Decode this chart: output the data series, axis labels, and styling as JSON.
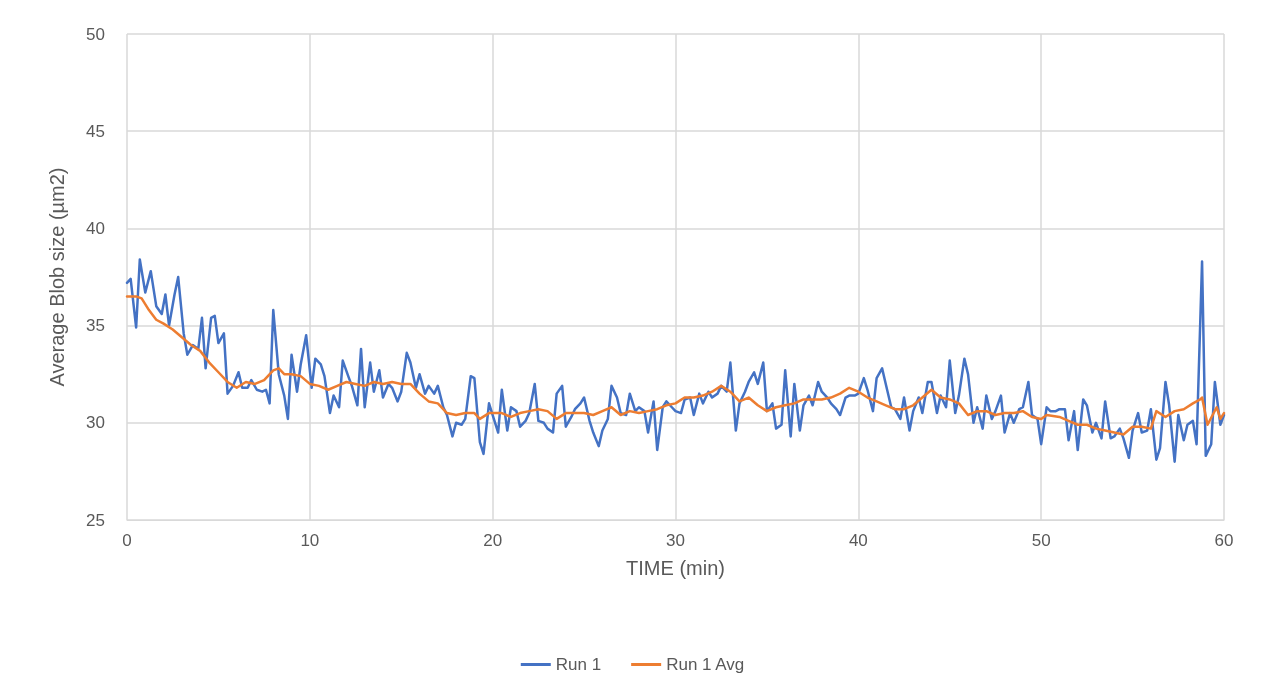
{
  "chart_data": {
    "type": "line",
    "xlabel": "TIME (min)",
    "ylabel": "Average Blob size (µm2)",
    "xlim": [
      0,
      60
    ],
    "xticks": [
      0,
      10,
      20,
      30,
      40,
      50,
      60
    ],
    "ylim": [
      25,
      50
    ],
    "yticks": [
      25,
      30,
      35,
      40,
      45,
      50
    ],
    "grid": true,
    "legend": "bottom",
    "marker": "none",
    "line_style": "solid",
    "series": [
      {
        "name": "Run 1",
        "color": "#4472c4",
        "x": [
          0,
          0.2,
          0.5,
          0.7,
          1.0,
          1.3,
          1.6,
          1.9,
          2.1,
          2.3,
          2.6,
          2.8,
          3.1,
          3.3,
          3.6,
          3.9,
          4.1,
          4.3,
          4.6,
          4.8,
          5.0,
          5.3,
          5.5,
          5.8,
          6.1,
          6.3,
          6.6,
          6.8,
          7.1,
          7.4,
          7.6,
          7.8,
          8.0,
          8.3,
          8.6,
          8.8,
          9.0,
          9.3,
          9.5,
          9.8,
          10.1,
          10.3,
          10.6,
          10.8,
          11.1,
          11.3,
          11.6,
          11.8,
          12.1,
          12.3,
          12.6,
          12.8,
          13.0,
          13.3,
          13.5,
          13.8,
          14.0,
          14.3,
          14.5,
          14.8,
          15.0,
          15.3,
          15.5,
          15.8,
          16.0,
          16.3,
          16.5,
          16.8,
          17.0,
          17.3,
          17.5,
          17.8,
          18.0,
          18.3,
          18.5,
          18.8,
          19.0,
          19.3,
          19.5,
          19.8,
          20.0,
          20.3,
          20.5,
          20.8,
          21.0,
          21.3,
          21.5,
          21.8,
          22.0,
          22.3,
          22.5,
          22.8,
          23.0,
          23.3,
          23.5,
          23.8,
          24.0,
          24.3,
          24.5,
          24.8,
          25.0,
          25.3,
          25.5,
          25.8,
          26.0,
          26.3,
          26.5,
          26.8,
          27.0,
          27.3,
          27.5,
          27.8,
          28.0,
          28.3,
          28.5,
          28.8,
          29.0,
          29.3,
          29.5,
          29.8,
          30.0,
          30.3,
          30.5,
          30.8,
          31.0,
          31.3,
          31.5,
          31.8,
          32.0,
          32.3,
          32.5,
          32.8,
          33.0,
          33.3,
          33.5,
          33.8,
          34.0,
          34.3,
          34.5,
          34.8,
          35.0,
          35.3,
          35.5,
          35.8,
          36.0,
          36.3,
          36.5,
          36.8,
          37.0,
          37.3,
          37.5,
          37.8,
          38.0,
          38.3,
          38.5,
          38.8,
          39.0,
          39.3,
          39.5,
          39.8,
          40.0,
          40.3,
          40.5,
          40.8,
          41.0,
          41.3,
          41.5,
          41.8,
          42.0,
          42.3,
          42.5,
          42.8,
          43.0,
          43.3,
          43.5,
          43.8,
          44.0,
          44.3,
          44.5,
          44.8,
          45.0,
          45.3,
          45.5,
          45.8,
          46.0,
          46.3,
          46.5,
          46.8,
          47.0,
          47.3,
          47.5,
          47.8,
          48.0,
          48.3,
          48.5,
          48.8,
          49.0,
          49.3,
          49.5,
          49.8,
          50.0,
          50.3,
          50.5,
          50.8,
          51.0,
          51.3,
          51.5,
          51.8,
          52.0,
          52.3,
          52.5,
          52.8,
          53.0,
          53.3,
          53.5,
          53.8,
          54.0,
          54.3,
          54.5,
          54.8,
          55.0,
          55.3,
          55.5,
          55.8,
          56.0,
          56.3,
          56.5,
          56.8,
          57.0,
          57.3,
          57.5,
          57.8,
          58.0,
          58.3,
          58.5,
          58.8,
          59.0,
          59.3,
          59.5,
          59.8,
          60.0
        ],
        "values": [
          37.2,
          37.4,
          34.9,
          38.4,
          36.7,
          37.8,
          36.0,
          35.6,
          36.6,
          35.0,
          36.6,
          37.5,
          34.6,
          33.5,
          34.0,
          33.8,
          35.4,
          32.8,
          35.4,
          35.5,
          34.1,
          34.6,
          31.5,
          31.9,
          32.6,
          31.8,
          31.8,
          32.2,
          31.7,
          31.6,
          31.7,
          31.0,
          35.8,
          32.5,
          31.4,
          30.2,
          33.5,
          31.6,
          33.0,
          34.5,
          31.8,
          33.3,
          33.0,
          32.4,
          30.5,
          31.4,
          30.8,
          33.2,
          32.4,
          31.9,
          30.9,
          33.8,
          30.8,
          33.1,
          31.6,
          32.7,
          31.3,
          32.0,
          31.8,
          31.1,
          31.6,
          33.6,
          33.1,
          31.8,
          32.5,
          31.5,
          31.9,
          31.5,
          31.9,
          30.8,
          30.4,
          29.3,
          30.0,
          29.9,
          30.2,
          32.4,
          32.3,
          29.0,
          28.4,
          31.0,
          30.4,
          29.5,
          31.7,
          29.6,
          30.8,
          30.6,
          29.8,
          30.1,
          30.5,
          32.0,
          30.1,
          30.0,
          29.7,
          29.5,
          31.5,
          31.9,
          29.8,
          30.3,
          30.7,
          31.0,
          31.3,
          30.1,
          29.5,
          28.8,
          29.6,
          30.2,
          31.9,
          31.3,
          30.5,
          30.4,
          31.5,
          30.6,
          30.8,
          30.6,
          29.5,
          31.1,
          28.6,
          30.8,
          31.1,
          30.8,
          30.6,
          30.5,
          31.2,
          31.3,
          30.4,
          31.5,
          31.0,
          31.6,
          31.3,
          31.5,
          31.9,
          31.6,
          33.1,
          29.6,
          31.0,
          31.6,
          32.1,
          32.6,
          32.0,
          33.1,
          30.6,
          31.0,
          29.7,
          29.9,
          32.7,
          29.3,
          32.0,
          29.6,
          30.9,
          31.4,
          30.9,
          32.1,
          31.6,
          31.3,
          31.0,
          30.7,
          30.4,
          31.3,
          31.4,
          31.4,
          31.5,
          32.3,
          31.7,
          30.6,
          32.3,
          32.8,
          32.0,
          30.8,
          30.7,
          30.2,
          31.3,
          29.6,
          30.6,
          31.3,
          30.5,
          32.1,
          32.1,
          30.5,
          31.4,
          30.8,
          33.2,
          30.5,
          31.4,
          33.3,
          32.5,
          30.0,
          30.8,
          29.7,
          31.4,
          30.2,
          30.6,
          31.4,
          29.5,
          30.5,
          30.0,
          30.7,
          30.8,
          32.1,
          30.4,
          30.2,
          28.9,
          30.8,
          30.6,
          30.6,
          30.7,
          30.7,
          29.1,
          30.6,
          28.6,
          31.2,
          30.9,
          29.5,
          30.0,
          29.2,
          31.1,
          29.2,
          29.3,
          29.7,
          29.2,
          28.2,
          29.6,
          30.5,
          29.5,
          29.6,
          30.7,
          28.1,
          28.7,
          32.1,
          30.9,
          28.0,
          30.4,
          29.1,
          29.9,
          30.1,
          28.9,
          38.3,
          28.3,
          28.9,
          32.1,
          29.9,
          30.4
        ]
      },
      {
        "name": "Run 1 Avg",
        "color": "#ed7d31",
        "x": [
          0,
          0.5,
          0.8,
          1.2,
          1.6,
          2.0,
          2.5,
          3.0,
          3.5,
          4.0,
          4.5,
          5.0,
          5.5,
          6.0,
          6.5,
          7.0,
          7.5,
          8.0,
          8.3,
          8.6,
          9.0,
          9.5,
          10.0,
          10.5,
          11.0,
          11.5,
          12.0,
          12.5,
          13.0,
          13.5,
          14.0,
          14.5,
          15.0,
          15.5,
          16.0,
          16.5,
          17.0,
          17.5,
          18.0,
          18.5,
          19.0,
          19.3,
          19.8,
          20.5,
          21.0,
          21.5,
          22.0,
          22.5,
          23.0,
          23.5,
          24.0,
          25.0,
          25.5,
          26.0,
          26.5,
          27.0,
          27.5,
          28.0,
          28.5,
          29.0,
          29.5,
          30.0,
          30.5,
          31.0,
          31.5,
          32.0,
          32.5,
          33.0,
          33.5,
          34.0,
          34.5,
          35.0,
          35.5,
          36.0,
          36.5,
          37.0,
          37.5,
          38.0,
          38.5,
          39.0,
          39.5,
          40.0,
          40.5,
          41.0,
          41.5,
          42.0,
          42.5,
          43.0,
          43.5,
          44.0,
          44.5,
          45.0,
          45.5,
          46.0,
          46.5,
          47.0,
          47.5,
          48.0,
          48.5,
          49.0,
          49.5,
          50.0,
          50.3,
          51.0,
          51.5,
          52.0,
          52.5,
          53.0,
          53.5,
          54.0,
          54.5,
          55.0,
          55.5,
          56.0,
          56.3,
          56.8,
          57.3,
          57.8,
          58.3,
          58.7,
          58.8,
          59.1,
          59.6,
          59.8,
          60.0
        ],
        "values": [
          36.5,
          36.5,
          36.4,
          35.8,
          35.3,
          35.1,
          34.8,
          34.4,
          34.0,
          33.7,
          33.1,
          32.6,
          32.1,
          31.8,
          32.1,
          32.0,
          32.2,
          32.7,
          32.8,
          32.5,
          32.5,
          32.4,
          32.0,
          31.9,
          31.7,
          31.9,
          32.1,
          32.0,
          31.9,
          32.1,
          32.0,
          32.1,
          32.0,
          32.0,
          31.5,
          31.1,
          31.0,
          30.5,
          30.4,
          30.5,
          30.5,
          30.2,
          30.5,
          30.5,
          30.3,
          30.5,
          30.6,
          30.7,
          30.6,
          30.2,
          30.5,
          30.5,
          30.4,
          30.6,
          30.8,
          30.4,
          30.6,
          30.5,
          30.6,
          30.7,
          30.9,
          31.0,
          31.3,
          31.3,
          31.4,
          31.6,
          31.9,
          31.6,
          31.1,
          31.3,
          30.9,
          30.6,
          30.8,
          30.9,
          31.0,
          31.2,
          31.2,
          31.2,
          31.3,
          31.5,
          31.8,
          31.6,
          31.3,
          31.1,
          30.9,
          30.7,
          30.7,
          30.9,
          31.3,
          31.7,
          31.3,
          31.2,
          31.0,
          30.4,
          30.6,
          30.6,
          30.4,
          30.5,
          30.5,
          30.6,
          30.3,
          30.2,
          30.4,
          30.3,
          30.1,
          29.9,
          29.9,
          29.7,
          29.6,
          29.5,
          29.4,
          29.8,
          29.8,
          29.7,
          30.6,
          30.3,
          30.6,
          30.7,
          31.0,
          31.2,
          31.3,
          29.9,
          30.8,
          30.2,
          30.5
        ]
      }
    ]
  }
}
